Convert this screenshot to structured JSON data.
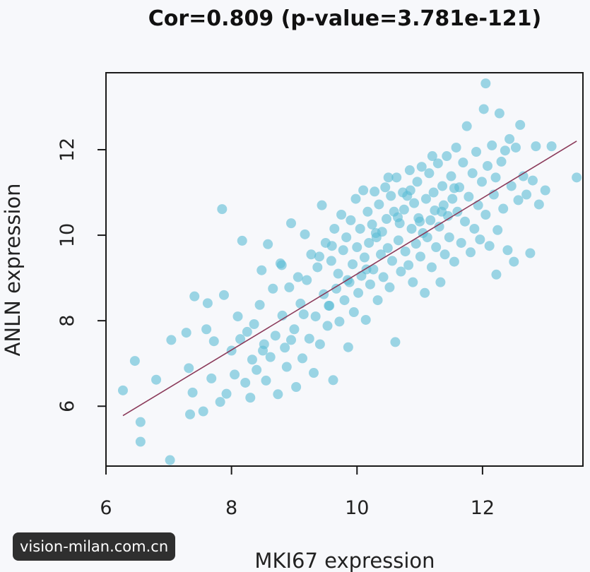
{
  "watermark": "vision-milan.com.cn",
  "chart_data": {
    "type": "scatter",
    "title": "Cor=0.809 (p-value=3.781e-121)",
    "xlabel": "MKI67 expression",
    "ylabel": "ANLN expression",
    "xlim": [
      6,
      13.6
    ],
    "ylim": [
      4.6,
      13.8
    ],
    "x_ticks": [
      6,
      8,
      10,
      12
    ],
    "y_ticks": [
      6,
      8,
      10,
      12
    ],
    "x_tick_labels": [
      "6",
      "8",
      "10",
      "12"
    ],
    "y_tick_labels": [
      "6",
      "8",
      "10",
      "12"
    ],
    "point_color": "#5bbdd6",
    "point_opacity": 0.6,
    "fit_line_color": "#8b3a5a",
    "fit_line": {
      "x": [
        6.27,
        13.5
      ],
      "y": [
        5.78,
        12.2
      ]
    },
    "grid": false,
    "legend": "none",
    "points": [
      [
        6.27,
        6.37
      ],
      [
        6.46,
        7.06
      ],
      [
        6.55,
        5.63
      ],
      [
        6.55,
        5.17
      ],
      [
        6.8,
        6.62
      ],
      [
        7.02,
        4.74
      ],
      [
        7.04,
        7.55
      ],
      [
        7.28,
        7.72
      ],
      [
        7.32,
        6.89
      ],
      [
        7.34,
        5.81
      ],
      [
        7.38,
        6.32
      ],
      [
        7.41,
        8.57
      ],
      [
        7.55,
        5.88
      ],
      [
        7.6,
        7.8
      ],
      [
        7.62,
        8.41
      ],
      [
        7.68,
        6.65
      ],
      [
        7.72,
        7.52
      ],
      [
        7.82,
        6.1
      ],
      [
        7.85,
        10.61
      ],
      [
        7.88,
        8.6
      ],
      [
        7.92,
        6.29
      ],
      [
        8.0,
        7.3
      ],
      [
        8.05,
        6.74
      ],
      [
        8.1,
        8.1
      ],
      [
        8.14,
        7.57
      ],
      [
        8.17,
        9.87
      ],
      [
        8.22,
        6.55
      ],
      [
        8.25,
        7.74
      ],
      [
        8.3,
        6.2
      ],
      [
        8.33,
        7.09
      ],
      [
        8.36,
        7.92
      ],
      [
        8.4,
        6.85
      ],
      [
        8.45,
        8.37
      ],
      [
        8.48,
        9.18
      ],
      [
        8.52,
        7.45
      ],
      [
        8.55,
        6.6
      ],
      [
        8.58,
        9.79
      ],
      [
        8.62,
        7.15
      ],
      [
        8.66,
        8.75
      ],
      [
        8.7,
        7.65
      ],
      [
        8.74,
        6.28
      ],
      [
        8.78,
        9.34
      ],
      [
        8.81,
        8.12
      ],
      [
        8.85,
        7.37
      ],
      [
        8.88,
        6.92
      ],
      [
        8.92,
        8.78
      ],
      [
        8.95,
        10.28
      ],
      [
        9.0,
        7.8
      ],
      [
        9.03,
        6.45
      ],
      [
        9.06,
        9.02
      ],
      [
        9.1,
        8.4
      ],
      [
        9.13,
        7.12
      ],
      [
        9.17,
        10.02
      ],
      [
        9.2,
        8.95
      ],
      [
        9.24,
        7.58
      ],
      [
        9.27,
        9.55
      ],
      [
        9.31,
        6.78
      ],
      [
        9.34,
        8.1
      ],
      [
        9.37,
        9.25
      ],
      [
        9.41,
        7.45
      ],
      [
        9.44,
        10.7
      ],
      [
        9.47,
        8.62
      ],
      [
        9.5,
        9.82
      ],
      [
        9.53,
        7.88
      ],
      [
        9.56,
        8.35
      ],
      [
        9.59,
        9.4
      ],
      [
        9.62,
        6.61
      ],
      [
        9.64,
        10.15
      ],
      [
        9.67,
        8.75
      ],
      [
        9.7,
        9.1
      ],
      [
        9.72,
        7.98
      ],
      [
        9.75,
        10.48
      ],
      [
        9.78,
        9.65
      ],
      [
        9.8,
        8.48
      ],
      [
        9.83,
        9.95
      ],
      [
        9.86,
        7.38
      ],
      [
        9.88,
        8.9
      ],
      [
        9.9,
        10.35
      ],
      [
        9.93,
        9.32
      ],
      [
        9.95,
        8.2
      ],
      [
        9.98,
        10.85
      ],
      [
        10.0,
        9.72
      ],
      [
        10.02,
        8.65
      ],
      [
        10.05,
        10.15
      ],
      [
        10.07,
        9.05
      ],
      [
        10.1,
        11.05
      ],
      [
        10.12,
        9.48
      ],
      [
        10.14,
        8.02
      ],
      [
        10.17,
        10.55
      ],
      [
        10.19,
        9.82
      ],
      [
        10.21,
        8.85
      ],
      [
        10.24,
        10.25
      ],
      [
        10.26,
        9.2
      ],
      [
        10.28,
        11.02
      ],
      [
        10.31,
        9.95
      ],
      [
        10.33,
        8.48
      ],
      [
        10.35,
        10.72
      ],
      [
        10.38,
        9.55
      ],
      [
        10.4,
        10.08
      ],
      [
        10.42,
        9.02
      ],
      [
        10.45,
        11.12
      ],
      [
        10.47,
        10.38
      ],
      [
        10.49,
        9.7
      ],
      [
        10.52,
        8.78
      ],
      [
        10.54,
        10.92
      ],
      [
        10.56,
        9.4
      ],
      [
        10.59,
        10.55
      ],
      [
        10.61,
        7.5
      ],
      [
        10.63,
        11.35
      ],
      [
        10.66,
        9.88
      ],
      [
        10.68,
        10.28
      ],
      [
        10.7,
        9.15
      ],
      [
        10.73,
        11.0
      ],
      [
        10.75,
        10.6
      ],
      [
        10.77,
        9.62
      ],
      [
        10.8,
        10.92
      ],
      [
        10.82,
        9.3
      ],
      [
        10.84,
        11.52
      ],
      [
        10.87,
        10.15
      ],
      [
        10.89,
        8.9
      ],
      [
        10.91,
        10.75
      ],
      [
        10.94,
        9.8
      ],
      [
        10.96,
        11.25
      ],
      [
        10.98,
        10.4
      ],
      [
        11.01,
        9.5
      ],
      [
        11.03,
        11.6
      ],
      [
        11.05,
        10.05
      ],
      [
        11.08,
        8.65
      ],
      [
        11.1,
        10.85
      ],
      [
        11.12,
        9.95
      ],
      [
        11.15,
        11.45
      ],
      [
        11.17,
        10.35
      ],
      [
        11.19,
        9.25
      ],
      [
        11.22,
        11.0
      ],
      [
        11.24,
        10.58
      ],
      [
        11.26,
        9.72
      ],
      [
        11.29,
        11.68
      ],
      [
        11.31,
        10.2
      ],
      [
        11.33,
        8.9
      ],
      [
        11.36,
        11.15
      ],
      [
        11.38,
        10.7
      ],
      [
        11.4,
        9.55
      ],
      [
        11.43,
        11.85
      ],
      [
        11.45,
        10.45
      ],
      [
        11.47,
        9.95
      ],
      [
        11.5,
        11.38
      ],
      [
        11.52,
        10.85
      ],
      [
        11.55,
        9.38
      ],
      [
        11.58,
        12.05
      ],
      [
        11.6,
        10.55
      ],
      [
        11.63,
        11.12
      ],
      [
        11.66,
        9.82
      ],
      [
        11.69,
        11.7
      ],
      [
        11.72,
        10.32
      ],
      [
        11.75,
        12.55
      ],
      [
        11.78,
        10.9
      ],
      [
        11.81,
        9.6
      ],
      [
        11.84,
        11.45
      ],
      [
        11.87,
        10.15
      ],
      [
        11.9,
        11.95
      ],
      [
        11.93,
        10.7
      ],
      [
        11.96,
        9.9
      ],
      [
        11.99,
        11.25
      ],
      [
        12.02,
        12.95
      ],
      [
        12.05,
        10.48
      ],
      [
        12.08,
        11.62
      ],
      [
        12.11,
        9.75
      ],
      [
        12.15,
        12.1
      ],
      [
        12.18,
        10.95
      ],
      [
        12.21,
        11.35
      ],
      [
        12.24,
        10.12
      ],
      [
        12.27,
        12.85
      ],
      [
        12.3,
        11.72
      ],
      [
        12.33,
        10.62
      ],
      [
        12.36,
        11.98
      ],
      [
        12.4,
        9.65
      ],
      [
        12.43,
        12.25
      ],
      [
        12.46,
        11.15
      ],
      [
        12.5,
        9.38
      ],
      [
        12.53,
        12.05
      ],
      [
        12.57,
        10.82
      ],
      [
        12.6,
        12.58
      ],
      [
        12.65,
        11.38
      ],
      [
        12.7,
        10.95
      ],
      [
        12.76,
        9.58
      ],
      [
        12.8,
        11.28
      ],
      [
        12.85,
        12.08
      ],
      [
        12.9,
        10.72
      ],
      [
        13.0,
        11.05
      ],
      [
        13.1,
        12.08
      ],
      [
        12.05,
        13.55
      ],
      [
        13.5,
        11.35
      ],
      [
        12.22,
        9.08
      ],
      [
        11.2,
        11.85
      ],
      [
        10.5,
        11.35
      ],
      [
        9.6,
        9.75
      ],
      [
        8.8,
        9.3
      ],
      [
        8.5,
        7.3
      ],
      [
        9.4,
        9.5
      ],
      [
        10.3,
        10.05
      ],
      [
        11.0,
        10.32
      ],
      [
        10.15,
        9.2
      ],
      [
        9.85,
        8.95
      ],
      [
        10.65,
        10.42
      ],
      [
        11.35,
        10.55
      ],
      [
        8.95,
        7.55
      ],
      [
        9.15,
        8.15
      ],
      [
        10.85,
        11.05
      ],
      [
        11.55,
        11.1
      ],
      [
        9.55,
        8.35
      ]
    ]
  }
}
